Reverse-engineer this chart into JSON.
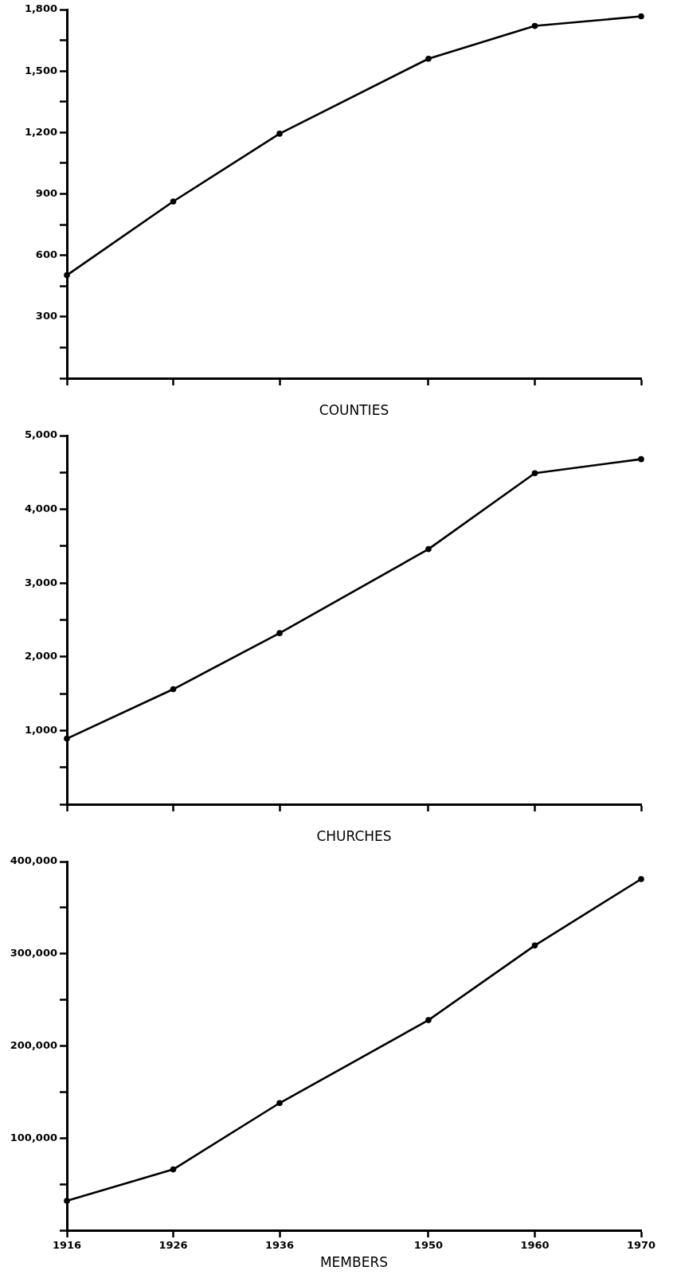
{
  "chart_data": [
    {
      "type": "line",
      "xlabel": "COUNTIES",
      "x": [
        1916,
        1926,
        1936,
        1950,
        1960,
        1970
      ],
      "values": [
        503,
        863,
        1194,
        1560,
        1720,
        1767
      ],
      "color": "#000000",
      "marker": "circle",
      "line_style": "solid",
      "grid": false,
      "tick_labels": "y",
      "xlim": [
        1916,
        1970
      ],
      "xticks": [
        {
          "value": 1916,
          "label": null
        },
        {
          "value": 1926,
          "label": null
        },
        {
          "value": 1936,
          "label": null
        },
        {
          "value": 1950,
          "label": null
        },
        {
          "value": 1960,
          "label": null
        },
        {
          "value": 1970,
          "label": null
        }
      ],
      "ylim": [
        0,
        1800
      ],
      "yticks": [
        {
          "value": 0,
          "label": null
        },
        {
          "value": 150,
          "label": null
        },
        300,
        {
          "value": 450,
          "label": null
        },
        600,
        {
          "value": 750,
          "label": null
        },
        900,
        {
          "value": 1050,
          "label": null
        },
        {
          "value": 1200,
          "label": "1,200"
        },
        {
          "value": 1350,
          "label": null
        },
        {
          "value": 1500,
          "label": "1,500"
        },
        {
          "value": 1650,
          "label": null
        },
        {
          "value": 1800,
          "label": "1,800"
        }
      ]
    },
    {
      "type": "line",
      "xlabel": "CHURCHES",
      "x": [
        1916,
        1926,
        1936,
        1950,
        1960,
        1970
      ],
      "values": [
        890,
        1560,
        2320,
        3460,
        4490,
        4680
      ],
      "color": "#000000",
      "marker": "circle",
      "line_style": "solid",
      "grid": false,
      "tick_labels": "y",
      "xlim": [
        1916,
        1970
      ],
      "xticks": [
        {
          "value": 1916,
          "label": null
        },
        {
          "value": 1926,
          "label": null
        },
        {
          "value": 1936,
          "label": null
        },
        {
          "value": 1950,
          "label": null
        },
        {
          "value": 1960,
          "label": null
        },
        {
          "value": 1970,
          "label": null
        }
      ],
      "ylim": [
        0,
        5000
      ],
      "yticks": [
        {
          "value": 0,
          "label": null
        },
        {
          "value": 500,
          "label": null
        },
        {
          "value": 1000,
          "label": "1,000"
        },
        {
          "value": 1500,
          "label": null
        },
        {
          "value": 2000,
          "label": "2,000"
        },
        {
          "value": 2500,
          "label": null
        },
        {
          "value": 3000,
          "label": "3,000"
        },
        {
          "value": 3500,
          "label": null
        },
        {
          "value": 4000,
          "label": "4,000"
        },
        {
          "value": 4500,
          "label": null
        },
        {
          "value": 5000,
          "label": "5,000"
        }
      ]
    },
    {
      "type": "line",
      "xlabel": "MEMBERS",
      "x": [
        1916,
        1926,
        1936,
        1950,
        1960,
        1970
      ],
      "values": [
        32000,
        66000,
        138000,
        228000,
        309000,
        381000
      ],
      "color": "#000000",
      "marker": "circle",
      "line_style": "solid",
      "grid": false,
      "xlim": [
        1916,
        1970
      ],
      "xticks": [
        1916,
        1926,
        1936,
        1950,
        1960,
        1970
      ],
      "ylim": [
        0,
        400000
      ],
      "yticks": [
        {
          "value": 0,
          "label": null
        },
        {
          "value": 50000,
          "label": null
        },
        {
          "value": 100000,
          "label": "100,000"
        },
        {
          "value": 150000,
          "label": null
        },
        {
          "value": 200000,
          "label": "200,000"
        },
        {
          "value": 250000,
          "label": null
        },
        {
          "value": 300000,
          "label": "300,000"
        },
        {
          "value": 350000,
          "label": null
        },
        {
          "value": 400000,
          "label": "400,000"
        }
      ]
    }
  ]
}
